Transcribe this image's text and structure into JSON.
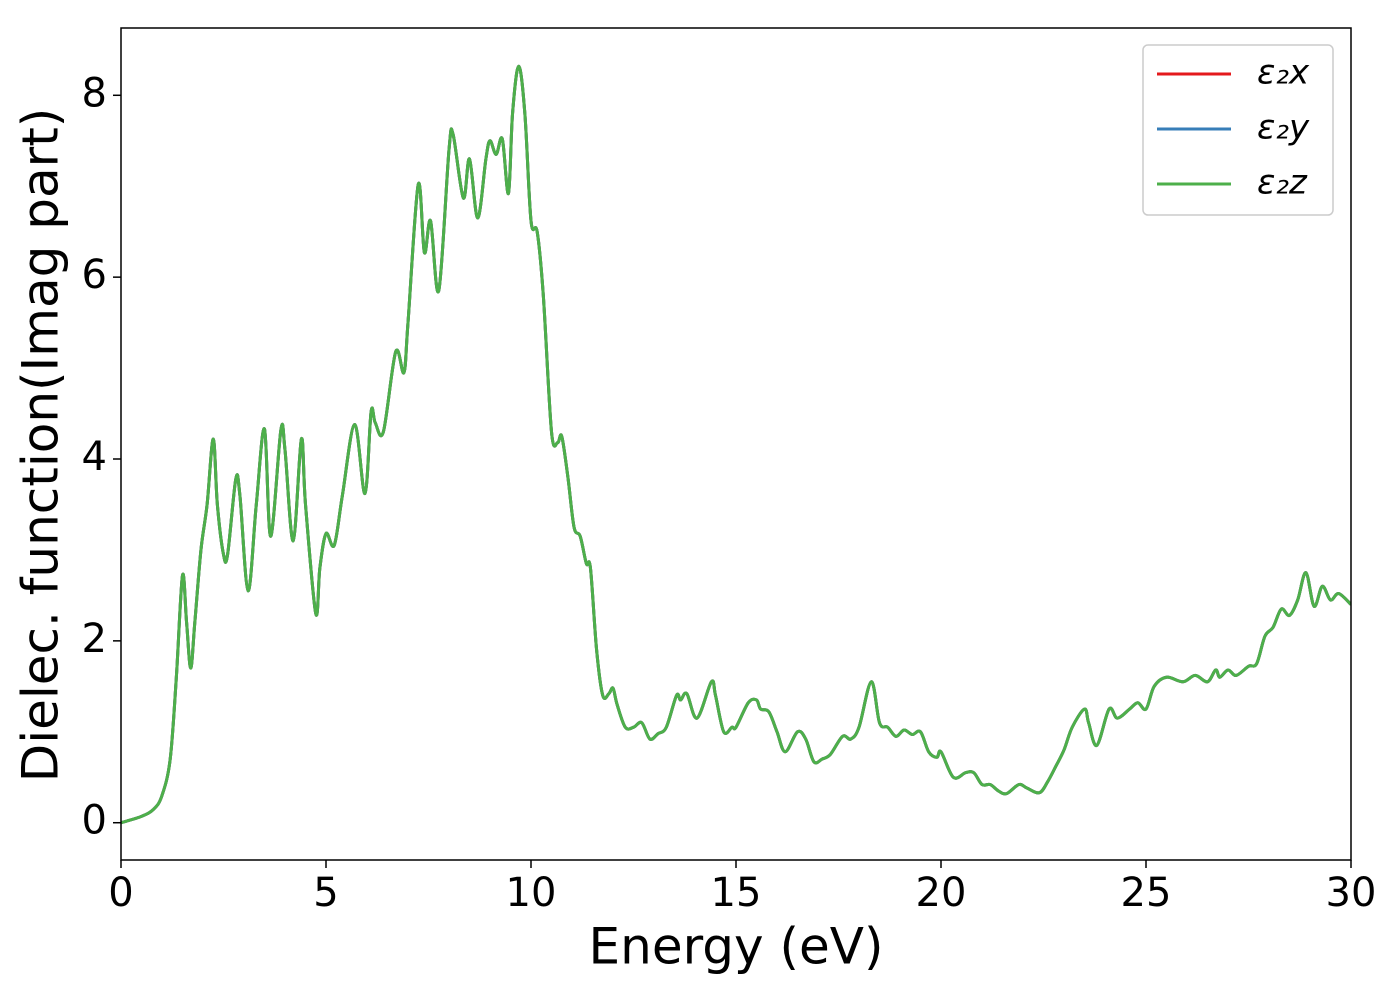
{
  "chart_data": {
    "type": "line",
    "xlabel": "Energy (eV)",
    "ylabel": "Dielec. function(Imag part)",
    "xlim": [
      0,
      30
    ],
    "ylim": [
      -0.41,
      8.74
    ],
    "xticks": [
      0,
      5,
      10,
      15,
      20,
      25,
      30
    ],
    "yticks": [
      0,
      2,
      4,
      6,
      8
    ],
    "grid": false,
    "legend": "upper right",
    "x": [
      0,
      0.5,
      0.8,
      1.0,
      1.2,
      1.35,
      1.5,
      1.6,
      1.7,
      1.8,
      1.95,
      2.1,
      2.25,
      2.35,
      2.5,
      2.6,
      2.8,
      2.9,
      3.1,
      3.3,
      3.5,
      3.65,
      3.9,
      4.0,
      4.2,
      4.4,
      4.5,
      4.75,
      4.85,
      5.0,
      5.2,
      5.4,
      5.7,
      5.95,
      6.1,
      6.2,
      6.4,
      6.7,
      6.9,
      7.0,
      7.25,
      7.4,
      7.55,
      7.75,
      8.0,
      8.1,
      8.35,
      8.5,
      8.7,
      8.9,
      9.0,
      9.15,
      9.3,
      9.45,
      9.55,
      9.7,
      9.85,
      10.0,
      10.15,
      10.3,
      10.5,
      10.65,
      10.75,
      10.9,
      11.05,
      11.2,
      11.35,
      11.45,
      11.6,
      11.75,
      11.9,
      12.0,
      12.1,
      12.3,
      12.5,
      12.7,
      12.9,
      13.1,
      13.3,
      13.55,
      13.65,
      13.8,
      14.05,
      14.4,
      14.5,
      14.7,
      14.9,
      15.0,
      15.3,
      15.5,
      15.6,
      15.8,
      16.0,
      16.2,
      16.5,
      16.7,
      16.9,
      17.1,
      17.3,
      17.6,
      17.8,
      18.0,
      18.3,
      18.5,
      18.7,
      18.9,
      19.1,
      19.3,
      19.5,
      19.7,
      19.9,
      20.0,
      20.3,
      20.6,
      20.8,
      21.0,
      21.2,
      21.4,
      21.6,
      21.9,
      22.1,
      22.4,
      22.6,
      22.8,
      23.0,
      23.2,
      23.5,
      23.6,
      23.8,
      24.1,
      24.3,
      24.6,
      24.8,
      25.0,
      25.2,
      25.5,
      25.9,
      26.2,
      26.5,
      26.7,
      26.8,
      27.0,
      27.2,
      27.5,
      27.7,
      27.9,
      28.1,
      28.3,
      28.5,
      28.7,
      28.9,
      29.1,
      29.3,
      29.5,
      29.7,
      30.0
    ],
    "series": [
      {
        "name": "ε₂x",
        "color": "#e41a1c",
        "values": [
          0.0,
          0.07,
          0.15,
          0.3,
          0.7,
          1.6,
          2.72,
          2.2,
          1.7,
          2.2,
          3.0,
          3.5,
          4.22,
          3.5,
          2.95,
          2.95,
          3.78,
          3.6,
          2.55,
          3.5,
          4.33,
          3.15,
          4.32,
          4.1,
          3.1,
          4.22,
          3.5,
          2.3,
          2.8,
          3.18,
          3.05,
          3.6,
          4.38,
          3.62,
          4.52,
          4.4,
          4.3,
          5.18,
          4.95,
          5.5,
          7.02,
          6.27,
          6.62,
          5.85,
          7.4,
          7.57,
          6.87,
          7.3,
          6.65,
          7.3,
          7.5,
          7.35,
          7.52,
          6.92,
          7.8,
          8.32,
          7.8,
          6.62,
          6.5,
          5.8,
          4.3,
          4.18,
          4.25,
          3.8,
          3.25,
          3.15,
          2.85,
          2.8,
          1.9,
          1.4,
          1.42,
          1.48,
          1.3,
          1.05,
          1.05,
          1.1,
          0.92,
          0.98,
          1.05,
          1.4,
          1.35,
          1.42,
          1.15,
          1.55,
          1.4,
          1.0,
          1.05,
          1.05,
          1.32,
          1.35,
          1.25,
          1.22,
          1.0,
          0.78,
          1.0,
          0.92,
          0.67,
          0.7,
          0.75,
          0.95,
          0.92,
          1.05,
          1.55,
          1.1,
          1.05,
          0.95,
          1.02,
          0.97,
          1.0,
          0.78,
          0.72,
          0.78,
          0.5,
          0.55,
          0.55,
          0.42,
          0.42,
          0.35,
          0.32,
          0.42,
          0.38,
          0.33,
          0.45,
          0.62,
          0.8,
          1.05,
          1.25,
          1.1,
          0.85,
          1.25,
          1.15,
          1.25,
          1.32,
          1.25,
          1.5,
          1.6,
          1.55,
          1.62,
          1.55,
          1.68,
          1.6,
          1.68,
          1.62,
          1.72,
          1.75,
          2.05,
          2.15,
          2.35,
          2.28,
          2.45,
          2.75,
          2.38,
          2.6,
          2.45,
          2.52,
          2.4
        ]
      },
      {
        "name": "ε₂y",
        "color": "#377eb8",
        "values": [
          0.0,
          0.07,
          0.15,
          0.3,
          0.7,
          1.6,
          2.72,
          2.2,
          1.7,
          2.2,
          3.0,
          3.5,
          4.22,
          3.5,
          2.95,
          2.95,
          3.78,
          3.6,
          2.55,
          3.5,
          4.33,
          3.15,
          4.32,
          4.1,
          3.1,
          4.22,
          3.5,
          2.3,
          2.8,
          3.18,
          3.05,
          3.6,
          4.38,
          3.62,
          4.52,
          4.4,
          4.3,
          5.18,
          4.95,
          5.5,
          7.02,
          6.27,
          6.62,
          5.85,
          7.4,
          7.57,
          6.87,
          7.3,
          6.65,
          7.3,
          7.5,
          7.35,
          7.52,
          6.92,
          7.8,
          8.32,
          7.8,
          6.62,
          6.5,
          5.8,
          4.3,
          4.18,
          4.25,
          3.8,
          3.25,
          3.15,
          2.85,
          2.8,
          1.9,
          1.4,
          1.42,
          1.48,
          1.3,
          1.05,
          1.05,
          1.1,
          0.92,
          0.98,
          1.05,
          1.4,
          1.35,
          1.42,
          1.15,
          1.55,
          1.4,
          1.0,
          1.05,
          1.05,
          1.32,
          1.35,
          1.25,
          1.22,
          1.0,
          0.78,
          1.0,
          0.92,
          0.67,
          0.7,
          0.75,
          0.95,
          0.92,
          1.05,
          1.55,
          1.1,
          1.05,
          0.95,
          1.02,
          0.97,
          1.0,
          0.78,
          0.72,
          0.78,
          0.5,
          0.55,
          0.55,
          0.42,
          0.42,
          0.35,
          0.32,
          0.42,
          0.38,
          0.33,
          0.45,
          0.62,
          0.8,
          1.05,
          1.25,
          1.1,
          0.85,
          1.25,
          1.15,
          1.25,
          1.32,
          1.25,
          1.5,
          1.6,
          1.55,
          1.62,
          1.55,
          1.68,
          1.6,
          1.68,
          1.62,
          1.72,
          1.75,
          2.05,
          2.15,
          2.35,
          2.28,
          2.45,
          2.75,
          2.38,
          2.6,
          2.45,
          2.52,
          2.4
        ]
      },
      {
        "name": "ε₂z",
        "color": "#4daf4a",
        "values": [
          0.0,
          0.07,
          0.15,
          0.3,
          0.7,
          1.6,
          2.72,
          2.2,
          1.7,
          2.2,
          3.0,
          3.5,
          4.22,
          3.5,
          2.95,
          2.95,
          3.78,
          3.6,
          2.55,
          3.5,
          4.33,
          3.15,
          4.32,
          4.1,
          3.1,
          4.22,
          3.5,
          2.3,
          2.8,
          3.18,
          3.05,
          3.6,
          4.38,
          3.62,
          4.52,
          4.4,
          4.3,
          5.18,
          4.95,
          5.5,
          7.02,
          6.27,
          6.62,
          5.85,
          7.4,
          7.57,
          6.87,
          7.3,
          6.65,
          7.3,
          7.5,
          7.35,
          7.52,
          6.92,
          7.8,
          8.32,
          7.8,
          6.62,
          6.5,
          5.8,
          4.3,
          4.18,
          4.25,
          3.8,
          3.25,
          3.15,
          2.85,
          2.8,
          1.9,
          1.4,
          1.42,
          1.48,
          1.3,
          1.05,
          1.05,
          1.1,
          0.92,
          0.98,
          1.05,
          1.4,
          1.35,
          1.42,
          1.15,
          1.55,
          1.4,
          1.0,
          1.05,
          1.05,
          1.32,
          1.35,
          1.25,
          1.22,
          1.0,
          0.78,
          1.0,
          0.92,
          0.67,
          0.7,
          0.75,
          0.95,
          0.92,
          1.05,
          1.55,
          1.1,
          1.05,
          0.95,
          1.02,
          0.97,
          1.0,
          0.78,
          0.72,
          0.78,
          0.5,
          0.55,
          0.55,
          0.42,
          0.42,
          0.35,
          0.32,
          0.42,
          0.38,
          0.33,
          0.45,
          0.62,
          0.8,
          1.05,
          1.25,
          1.1,
          0.85,
          1.25,
          1.15,
          1.25,
          1.32,
          1.25,
          1.5,
          1.6,
          1.55,
          1.62,
          1.55,
          1.68,
          1.6,
          1.68,
          1.62,
          1.72,
          1.75,
          2.05,
          2.15,
          2.35,
          2.28,
          2.45,
          2.75,
          2.38,
          2.6,
          2.45,
          2.52,
          2.4
        ]
      }
    ]
  }
}
